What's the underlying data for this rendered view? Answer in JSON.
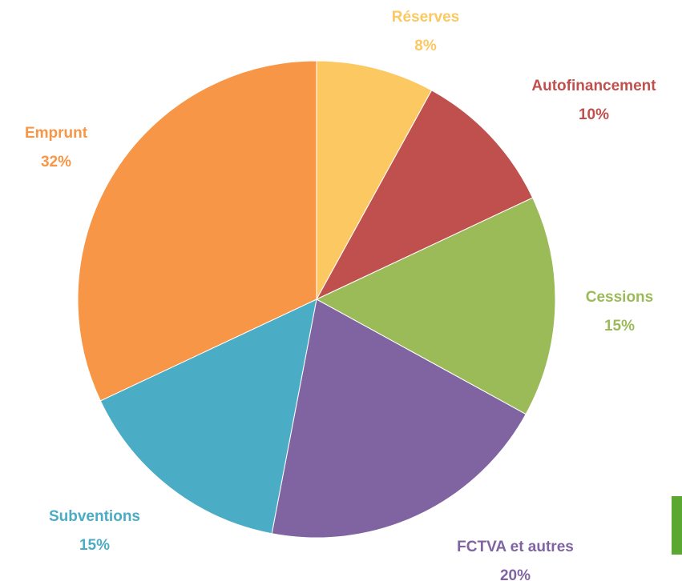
{
  "chart_data": {
    "type": "pie",
    "categories": [
      "Réserves",
      "Autofinancement",
      "Cessions",
      "FCTVA et autres",
      "Subventions",
      "Emprunt"
    ],
    "values": [
      8,
      10,
      15,
      20,
      15,
      32
    ],
    "value_labels": [
      "8%",
      "10%",
      "15%",
      "20%",
      "15%",
      "32%"
    ],
    "colors": [
      "#fcc862",
      "#c0504d",
      "#9bbb59",
      "#8064a2",
      "#4bacc6",
      "#f79646"
    ]
  }
}
